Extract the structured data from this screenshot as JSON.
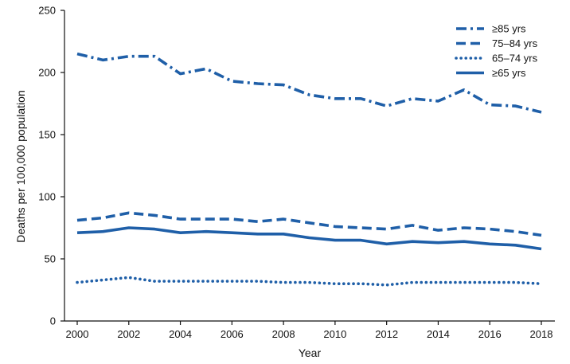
{
  "chart_data": {
    "type": "line",
    "xlabel": "Year",
    "ylabel": "Deaths per 100,000 population",
    "xlim": [
      2000,
      2018
    ],
    "ylim": [
      0,
      250
    ],
    "xticks": [
      2000,
      2002,
      2004,
      2006,
      2008,
      2010,
      2012,
      2014,
      2016,
      2018
    ],
    "yticks": [
      0,
      50,
      100,
      150,
      200,
      250
    ],
    "grid": false,
    "legend_position": "top-right",
    "x": [
      2000,
      2001,
      2002,
      2003,
      2004,
      2005,
      2006,
      2007,
      2008,
      2009,
      2010,
      2011,
      2012,
      2013,
      2014,
      2015,
      2016,
      2017,
      2018
    ],
    "series": [
      {
        "name": "≥85 yrs",
        "style": "dash-dot",
        "color": "#1f5fa8",
        "values": [
          215,
          210,
          213,
          213,
          199,
          203,
          193,
          191,
          190,
          182,
          179,
          179,
          173,
          179,
          177,
          186,
          174,
          173,
          168
        ]
      },
      {
        "name": "75–84 yrs",
        "style": "dash",
        "color": "#1f5fa8",
        "values": [
          81,
          83,
          87,
          85,
          82,
          82,
          82,
          80,
          82,
          79,
          76,
          75,
          74,
          77,
          73,
          75,
          74,
          72,
          69
        ]
      },
      {
        "name": "65–74 yrs",
        "style": "dot",
        "color": "#1f5fa8",
        "values": [
          31,
          33,
          35,
          32,
          32,
          32,
          32,
          32,
          31,
          31,
          30,
          30,
          29,
          31,
          31,
          31,
          31,
          31,
          30
        ]
      },
      {
        "name": "≥65 yrs",
        "style": "solid",
        "color": "#1f5fa8",
        "values": [
          71,
          72,
          75,
          74,
          71,
          72,
          71,
          70,
          70,
          67,
          65,
          65,
          62,
          64,
          63,
          64,
          62,
          61,
          58
        ]
      }
    ]
  }
}
